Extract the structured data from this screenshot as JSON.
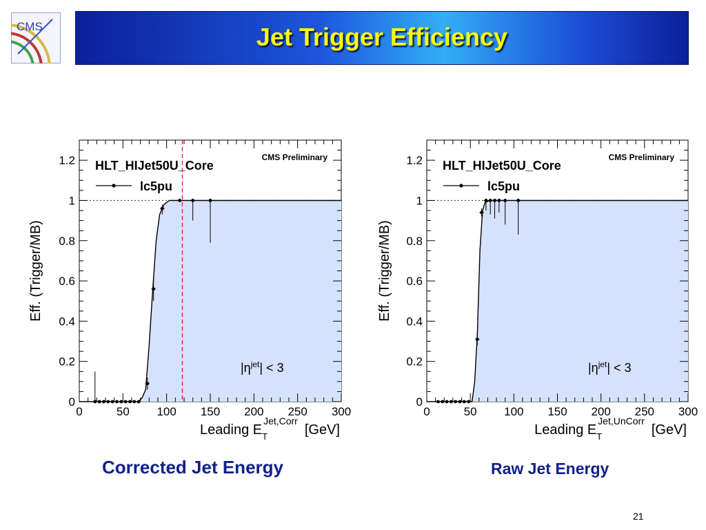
{
  "slide": {
    "title": "Jet Trigger Efficiency",
    "logo_text": "CMS",
    "page_number": "21",
    "captions": [
      "Corrected Jet Energy",
      "Raw Jet Energy"
    ]
  },
  "colors": {
    "fill": "#d6e1fb",
    "curve": "#000000",
    "cut_line": "#e02020",
    "caption": "#10208a",
    "title": "#ffff00"
  },
  "chart_data": [
    {
      "type": "line",
      "title": "HLT_HIJet50U_Core",
      "annotation": "CMS Preliminary",
      "legend": "lc5pu",
      "legend_position": "top-left",
      "region_prefix": "|η",
      "region_sup": "jet",
      "region_suffix": "| < 3",
      "ylabel": "Eff. (Trigger/MB)",
      "xlabel_main": "Leading E",
      "xlabel_sub": "T",
      "xlabel_sup": "Jet,Corr",
      "xlabel_unit": "[GeV]",
      "xlim": [
        0,
        300
      ],
      "ylim": [
        0,
        1.3
      ],
      "xticks": [
        0,
        50,
        100,
        150,
        200,
        250,
        300
      ],
      "yticks": [
        0,
        0.2,
        0.4,
        0.6,
        0.8,
        1,
        1.2
      ],
      "reference_line_y": 1,
      "vertical_cut_x": 118,
      "points": [
        {
          "x": 18,
          "y": 0.0,
          "err_lo": 0,
          "err_hi": 0.15,
          "xerr": 2.5
        },
        {
          "x": 23,
          "y": 0.0,
          "err_lo": 0,
          "err_hi": 0,
          "xerr": 2.5
        },
        {
          "x": 28,
          "y": 0.0,
          "err_lo": 0,
          "err_hi": 0,
          "xerr": 2.5
        },
        {
          "x": 33,
          "y": 0.0,
          "err_lo": 0,
          "err_hi": 0,
          "xerr": 2.5
        },
        {
          "x": 38,
          "y": 0.0,
          "err_lo": 0,
          "err_hi": 0,
          "xerr": 2.5
        },
        {
          "x": 43,
          "y": 0.0,
          "err_lo": 0,
          "err_hi": 0,
          "xerr": 2.5
        },
        {
          "x": 48,
          "y": 0.0,
          "err_lo": 0,
          "err_hi": 0,
          "xerr": 2.5
        },
        {
          "x": 53,
          "y": 0.0,
          "err_lo": 0,
          "err_hi": 0,
          "xerr": 2.5
        },
        {
          "x": 58,
          "y": 0.0,
          "err_lo": 0,
          "err_hi": 0,
          "xerr": 2.5
        },
        {
          "x": 63,
          "y": 0.0,
          "err_lo": 0,
          "err_hi": 0,
          "xerr": 2.5
        },
        {
          "x": 68,
          "y": 0.0,
          "err_lo": 0,
          "err_hi": 0,
          "xerr": 2.5
        },
        {
          "x": 78,
          "y": 0.09,
          "err_lo": 0.03,
          "err_hi": 0.03,
          "xerr": 2.5
        },
        {
          "x": 85,
          "y": 0.56,
          "err_lo": 0.06,
          "err_hi": 0.06,
          "xerr": 2.5
        },
        {
          "x": 95,
          "y": 0.96,
          "err_lo": 0.03,
          "err_hi": 0.02,
          "xerr": 2.5
        },
        {
          "x": 115,
          "y": 1.0,
          "err_lo": 0,
          "err_hi": 0,
          "xerr": 10
        },
        {
          "x": 130,
          "y": 1.0,
          "err_lo": 0.1,
          "err_hi": 0,
          "xerr": 5
        },
        {
          "x": 150,
          "y": 1.0,
          "err_lo": 0.21,
          "err_hi": 0,
          "xerr": 10
        }
      ],
      "fit_curve": [
        [
          0,
          0
        ],
        [
          68,
          0
        ],
        [
          72,
          0.02
        ],
        [
          76,
          0.06
        ],
        [
          80,
          0.28
        ],
        [
          84,
          0.55
        ],
        [
          88,
          0.8
        ],
        [
          92,
          0.93
        ],
        [
          97,
          0.98
        ],
        [
          103,
          1.0
        ],
        [
          300,
          1.0
        ]
      ]
    },
    {
      "type": "line",
      "title": "HLT_HIJet50U_Core",
      "annotation": "CMS Preliminary",
      "legend": "lc5pu",
      "legend_position": "top-left",
      "region_prefix": "|η",
      "region_sup": "jet",
      "region_suffix": "| < 3",
      "ylabel": "Eff. (Trigger/MB)",
      "xlabel_main": "Leading E",
      "xlabel_sub": "T",
      "xlabel_sup": "Jet,UnCorr",
      "xlabel_unit": "[GeV]",
      "xlim": [
        0,
        300
      ],
      "ylim": [
        0,
        1.3
      ],
      "xticks": [
        0,
        50,
        100,
        150,
        200,
        250,
        300
      ],
      "yticks": [
        0,
        0.2,
        0.4,
        0.6,
        0.8,
        1,
        1.2
      ],
      "reference_line_y": 1,
      "points": [
        {
          "x": 13,
          "y": 0.0,
          "err_lo": 0,
          "err_hi": 0,
          "xerr": 2.5
        },
        {
          "x": 18,
          "y": 0.0,
          "err_lo": 0,
          "err_hi": 0,
          "xerr": 2.5
        },
        {
          "x": 23,
          "y": 0.0,
          "err_lo": 0,
          "err_hi": 0,
          "xerr": 2.5
        },
        {
          "x": 28,
          "y": 0.0,
          "err_lo": 0,
          "err_hi": 0,
          "xerr": 2.5
        },
        {
          "x": 33,
          "y": 0.0,
          "err_lo": 0,
          "err_hi": 0,
          "xerr": 2.5
        },
        {
          "x": 38,
          "y": 0.0,
          "err_lo": 0,
          "err_hi": 0,
          "xerr": 2.5
        },
        {
          "x": 43,
          "y": 0.0,
          "err_lo": 0,
          "err_hi": 0,
          "xerr": 2.5
        },
        {
          "x": 48,
          "y": 0.0,
          "err_lo": 0,
          "err_hi": 0,
          "xerr": 2.5
        },
        {
          "x": 58,
          "y": 0.31,
          "err_lo": 0.03,
          "err_hi": 0.04,
          "xerr": 2.5
        },
        {
          "x": 63,
          "y": 0.94,
          "err_lo": 0.02,
          "err_hi": 0.02,
          "xerr": 2.5
        },
        {
          "x": 68,
          "y": 1.0,
          "err_lo": 0.05,
          "err_hi": 0,
          "xerr": 2.5
        },
        {
          "x": 73,
          "y": 1.0,
          "err_lo": 0.07,
          "err_hi": 0,
          "xerr": 2.5
        },
        {
          "x": 78,
          "y": 1.0,
          "err_lo": 0.09,
          "err_hi": 0,
          "xerr": 2.5
        },
        {
          "x": 83,
          "y": 1.0,
          "err_lo": 0.06,
          "err_hi": 0,
          "xerr": 2.5
        },
        {
          "x": 90,
          "y": 1.0,
          "err_lo": 0.12,
          "err_hi": 0,
          "xerr": 5
        },
        {
          "x": 105,
          "y": 1.0,
          "err_lo": 0.17,
          "err_hi": 0,
          "xerr": 10
        }
      ],
      "fit_curve": [
        [
          0,
          0
        ],
        [
          48,
          0
        ],
        [
          52,
          0.0
        ],
        [
          55,
          0.1
        ],
        [
          58,
          0.33
        ],
        [
          61,
          0.75
        ],
        [
          64,
          0.95
        ],
        [
          67,
          0.99
        ],
        [
          72,
          1.0
        ],
        [
          300,
          1.0
        ]
      ]
    }
  ]
}
